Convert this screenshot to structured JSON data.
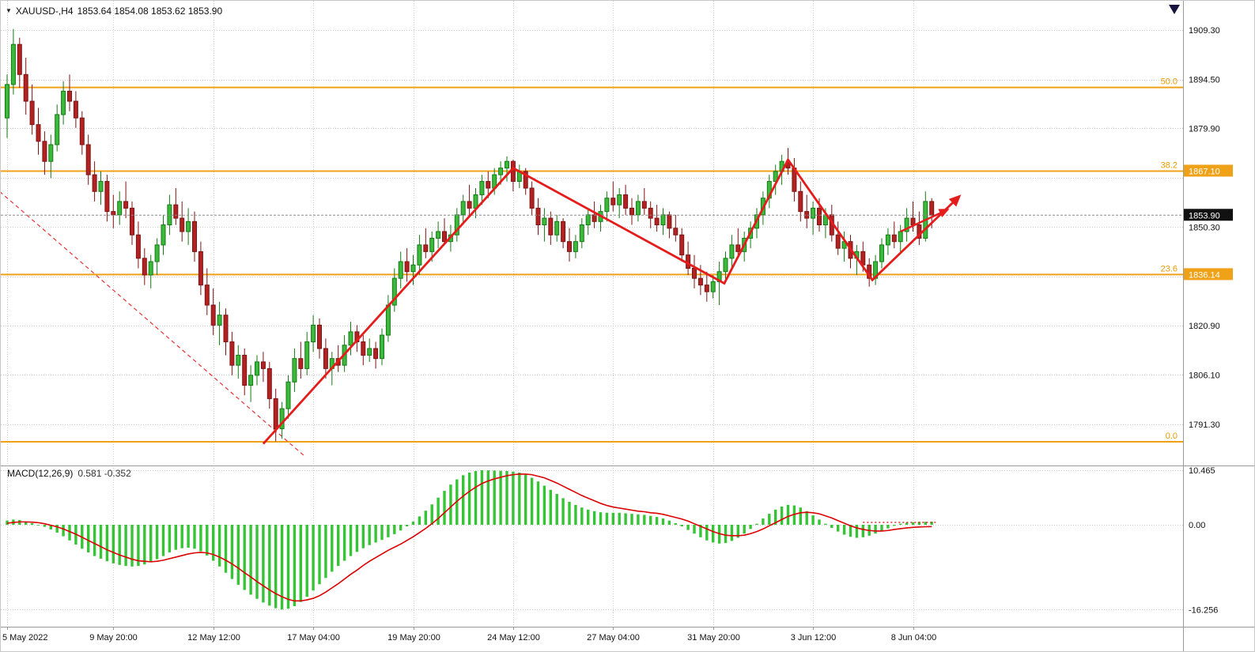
{
  "header": {
    "collapse_icon": "▼",
    "symbol_timeframe": "XAUUSD-,H4",
    "ohlc_text": "1853.64 1854.08 1853.62 1853.90"
  },
  "chart_data": {
    "type": "candlestick",
    "symbol": "XAUUSD-",
    "timeframe": "H4",
    "current_bar_ohlc": {
      "open": 1853.64,
      "high": 1854.08,
      "low": 1853.62,
      "close": 1853.9
    },
    "price_axis": {
      "ticks": [
        {
          "text": "1909.30",
          "price": 1909.3
        },
        {
          "text": "1894.50",
          "price": 1894.5
        },
        {
          "text": "1879.90",
          "price": 1879.9
        },
        {
          "text": "1850.30",
          "price": 1850.3
        },
        {
          "text": "1820.90",
          "price": 1820.9
        },
        {
          "text": "1806.10",
          "price": 1806.1
        },
        {
          "text": "1791.30",
          "price": 1791.3
        }
      ],
      "grid_prices": [
        1909.3,
        1894.5,
        1879.9,
        1865.1,
        1850.3,
        1835.5,
        1820.9,
        1806.1,
        1791.3
      ]
    },
    "time_axis": {
      "labels": [
        {
          "bar": 0,
          "text": "5 May 2022"
        },
        {
          "bar": 17,
          "text": "9 May 20:00"
        },
        {
          "bar": 33,
          "text": "12 May 12:00"
        },
        {
          "bar": 49,
          "text": "17 May 04:00"
        },
        {
          "bar": 65,
          "text": "19 May 20:00"
        },
        {
          "bar": 81,
          "text": "24 May 12:00"
        },
        {
          "bar": 97,
          "text": "27 May 04:00"
        },
        {
          "bar": 113,
          "text": "31 May 20:00"
        },
        {
          "bar": 129,
          "text": "3 Jun 12:00"
        },
        {
          "bar": 145,
          "text": "8 Jun 04:00"
        }
      ]
    },
    "candles": [
      [
        1883,
        1896,
        1877,
        1893
      ],
      [
        1893,
        1909.6,
        1890,
        1905
      ],
      [
        1905,
        1907,
        1892,
        1896
      ],
      [
        1896,
        1901,
        1884,
        1888
      ],
      [
        1888,
        1893,
        1878,
        1881
      ],
      [
        1881,
        1886,
        1872,
        1876
      ],
      [
        1876,
        1879,
        1866,
        1870
      ],
      [
        1870,
        1878,
        1865,
        1875
      ],
      [
        1875,
        1887,
        1873,
        1884
      ],
      [
        1884,
        1894,
        1881,
        1891
      ],
      [
        1891,
        1896,
        1885,
        1888
      ],
      [
        1888,
        1891,
        1880,
        1883
      ],
      [
        1883,
        1885,
        1872,
        1875
      ],
      [
        1875,
        1878,
        1863,
        1866
      ],
      [
        1866,
        1870,
        1858,
        1861
      ],
      [
        1861,
        1867,
        1857,
        1864
      ],
      [
        1864,
        1866,
        1852,
        1855
      ],
      [
        1855,
        1860,
        1850,
        1854
      ],
      [
        1854,
        1861,
        1851,
        1858
      ],
      [
        1858,
        1864,
        1853,
        1856
      ],
      [
        1856,
        1858,
        1845,
        1848
      ],
      [
        1848,
        1852,
        1838,
        1841
      ],
      [
        1841,
        1844,
        1833,
        1836
      ],
      [
        1836,
        1842,
        1832,
        1840
      ],
      [
        1840,
        1847,
        1836,
        1845
      ],
      [
        1845,
        1854,
        1842,
        1851
      ],
      [
        1851,
        1860,
        1848,
        1857
      ],
      [
        1857,
        1862,
        1851,
        1853
      ],
      [
        1853,
        1858,
        1846,
        1849
      ],
      [
        1849,
        1856,
        1845,
        1852
      ],
      [
        1852,
        1855,
        1840,
        1843
      ],
      [
        1843,
        1846,
        1830,
        1833
      ],
      [
        1833,
        1838,
        1824,
        1827
      ],
      [
        1827,
        1832,
        1818,
        1821
      ],
      [
        1821,
        1828,
        1815,
        1824
      ],
      [
        1824,
        1826,
        1812,
        1816
      ],
      [
        1816,
        1819,
        1806,
        1809
      ],
      [
        1809,
        1815,
        1805,
        1812
      ],
      [
        1812,
        1814,
        1800,
        1803
      ],
      [
        1803,
        1809,
        1798,
        1806
      ],
      [
        1806,
        1812,
        1803,
        1810
      ],
      [
        1810,
        1813,
        1804,
        1808
      ],
      [
        1808,
        1810,
        1796,
        1799
      ],
      [
        1799,
        1802,
        1786.2,
        1790
      ],
      [
        1790,
        1798,
        1787,
        1796
      ],
      [
        1796,
        1806,
        1793,
        1804
      ],
      [
        1804,
        1814,
        1801,
        1811
      ],
      [
        1811,
        1816,
        1805,
        1808
      ],
      [
        1808,
        1819,
        1806,
        1816
      ],
      [
        1816,
        1824,
        1813,
        1821
      ],
      [
        1821,
        1823,
        1811,
        1814
      ],
      [
        1814,
        1817,
        1805,
        1808
      ],
      [
        1808,
        1813,
        1803,
        1811
      ],
      [
        1811,
        1815,
        1807,
        1809
      ],
      [
        1809,
        1818,
        1807,
        1815
      ],
      [
        1815,
        1822,
        1812,
        1819
      ],
      [
        1819,
        1821,
        1813,
        1816
      ],
      [
        1816,
        1818,
        1809,
        1812
      ],
      [
        1812,
        1817,
        1810,
        1814
      ],
      [
        1814,
        1816,
        1808,
        1811
      ],
      [
        1811,
        1820,
        1809,
        1818
      ],
      [
        1818,
        1830,
        1816,
        1827
      ],
      [
        1827,
        1838,
        1825,
        1835
      ],
      [
        1835,
        1843,
        1832,
        1840
      ],
      [
        1840,
        1844,
        1834,
        1837
      ],
      [
        1837,
        1842,
        1833,
        1839
      ],
      [
        1839,
        1848,
        1836,
        1845
      ],
      [
        1845,
        1850,
        1841,
        1843
      ],
      [
        1843,
        1849,
        1840,
        1847
      ],
      [
        1847,
        1852,
        1844,
        1849
      ],
      [
        1849,
        1853,
        1845,
        1846
      ],
      [
        1846,
        1851,
        1843,
        1848
      ],
      [
        1848,
        1856,
        1846,
        1854
      ],
      [
        1854,
        1860,
        1851,
        1858
      ],
      [
        1858,
        1863,
        1854,
        1856
      ],
      [
        1856,
        1862,
        1853,
        1860
      ],
      [
        1860,
        1866,
        1857,
        1864
      ],
      [
        1864,
        1867,
        1859,
        1862
      ],
      [
        1862,
        1868,
        1860,
        1866
      ],
      [
        1866,
        1870,
        1863,
        1868
      ],
      [
        1868,
        1871.5,
        1864,
        1870
      ],
      [
        1870,
        1870.5,
        1861,
        1864
      ],
      [
        1864,
        1869,
        1862,
        1867
      ],
      [
        1867,
        1868,
        1860,
        1862
      ],
      [
        1862,
        1864,
        1854,
        1856
      ],
      [
        1856,
        1859,
        1848,
        1851
      ],
      [
        1851,
        1856,
        1846,
        1853
      ],
      [
        1853,
        1855,
        1845,
        1848
      ],
      [
        1848,
        1854,
        1846,
        1852
      ],
      [
        1852,
        1853,
        1844,
        1846
      ],
      [
        1846,
        1850,
        1840,
        1843
      ],
      [
        1843,
        1848,
        1841,
        1846
      ],
      [
        1846,
        1853,
        1844,
        1851
      ],
      [
        1851,
        1856,
        1848,
        1854
      ],
      [
        1854,
        1858,
        1850,
        1852
      ],
      [
        1852,
        1857,
        1849,
        1855
      ],
      [
        1855,
        1861,
        1852,
        1859
      ],
      [
        1859,
        1864,
        1855,
        1857
      ],
      [
        1857,
        1862,
        1853,
        1860
      ],
      [
        1860,
        1863,
        1854,
        1856
      ],
      [
        1856,
        1859,
        1851,
        1854
      ],
      [
        1854,
        1860,
        1852,
        1858
      ],
      [
        1858,
        1862,
        1854,
        1856
      ],
      [
        1856,
        1858,
        1850,
        1853
      ],
      [
        1853,
        1857,
        1849,
        1851
      ],
      [
        1851,
        1856,
        1848,
        1854
      ],
      [
        1854,
        1855,
        1847,
        1850
      ],
      [
        1850,
        1854,
        1846,
        1848
      ],
      [
        1848,
        1850,
        1840,
        1842
      ],
      [
        1842,
        1846,
        1836,
        1838
      ],
      [
        1838,
        1842,
        1832,
        1835
      ],
      [
        1835,
        1839,
        1830,
        1833
      ],
      [
        1833,
        1837,
        1828,
        1831
      ],
      [
        1831,
        1836,
        1829,
        1834
      ],
      [
        1834,
        1840,
        1827,
        1837
      ],
      [
        1837,
        1843,
        1834,
        1841
      ],
      [
        1841,
        1848,
        1838,
        1845
      ],
      [
        1845,
        1850,
        1842,
        1843
      ],
      [
        1843,
        1849,
        1840,
        1847
      ],
      [
        1847,
        1852,
        1844,
        1850
      ],
      [
        1850,
        1856,
        1847,
        1854
      ],
      [
        1854,
        1861,
        1851,
        1859
      ],
      [
        1859,
        1866,
        1856,
        1864
      ],
      [
        1864,
        1869,
        1860,
        1867
      ],
      [
        1867,
        1872,
        1863,
        1870
      ],
      [
        1870,
        1874,
        1866,
        1868
      ],
      [
        1868,
        1871,
        1858,
        1861
      ],
      [
        1861,
        1864,
        1852,
        1855
      ],
      [
        1855,
        1860,
        1850,
        1853
      ],
      [
        1853,
        1858,
        1848,
        1856
      ],
      [
        1856,
        1859,
        1849,
        1851
      ],
      [
        1851,
        1856,
        1847,
        1854
      ],
      [
        1854,
        1857,
        1846,
        1848
      ],
      [
        1848,
        1852,
        1842,
        1844
      ],
      [
        1844,
        1849,
        1840,
        1846
      ],
      [
        1846,
        1848,
        1838,
        1841
      ],
      [
        1841,
        1845,
        1836,
        1843
      ],
      [
        1843,
        1846,
        1837,
        1839
      ],
      [
        1839,
        1841,
        1832.5,
        1835
      ],
      [
        1835,
        1842,
        1833,
        1840
      ],
      [
        1840,
        1847,
        1838,
        1845
      ],
      [
        1845,
        1850,
        1842,
        1848
      ],
      [
        1848,
        1852,
        1844,
        1846
      ],
      [
        1846,
        1851,
        1843,
        1849
      ],
      [
        1849,
        1856,
        1846,
        1853
      ],
      [
        1853,
        1858,
        1849,
        1851
      ],
      [
        1851,
        1855,
        1845,
        1847
      ],
      [
        1847,
        1861,
        1846,
        1858
      ],
      [
        1858,
        1859,
        1850,
        1853.9
      ]
    ],
    "overlays": {
      "fib_levels": [
        {
          "label": "50.0",
          "price": 1892.13,
          "badge": ""
        },
        {
          "label": "38.2",
          "price": 1867.1,
          "badge": "1867.10"
        },
        {
          "label": "23.6",
          "price": 1836.14,
          "badge": "1836.14"
        },
        {
          "label": "0.0",
          "price": 1786.1,
          "badge": ""
        }
      ],
      "current_price": {
        "value": 1853.9,
        "badge": "1853.90"
      },
      "trendline": {
        "style": "dashed",
        "points": [
          {
            "bar": -1.2,
            "price": 1861
          },
          {
            "bar": 47.5,
            "price": 1782
          }
        ]
      },
      "zigzag_arrow": {
        "points": [
          {
            "bar": 41,
            "price": 1785.5
          },
          {
            "bar": 81,
            "price": 1868
          },
          {
            "bar": 114.8,
            "price": 1833.5
          },
          {
            "bar": 125,
            "price": 1870.5
          },
          {
            "bar": 138.5,
            "price": 1834.5
          },
          {
            "bar": 152.4,
            "price": 1859.5
          }
        ]
      },
      "arrow2": {
        "points": [
          {
            "bar": 143,
            "price": 1849
          },
          {
            "bar": 150.5,
            "price": 1855.5
          }
        ]
      }
    },
    "macd": {
      "label": "MACD(12,26,9)",
      "values_text": "0.581 -0.352",
      "main_value": 0.581,
      "signal_value": -0.352,
      "axis": [
        {
          "text": "10.465",
          "value": 10.465
        },
        {
          "text": "0.00",
          "value": 0
        },
        {
          "text": "-16.256",
          "value": -16.256
        }
      ],
      "histogram": [
        0.8,
        1.0,
        0.9,
        0.6,
        0.3,
        0.0,
        -0.4,
        -0.9,
        -1.5,
        -2.2,
        -3.0,
        -3.8,
        -4.6,
        -5.3,
        -6.0,
        -6.5,
        -7.0,
        -7.4,
        -7.7,
        -7.9,
        -8.0,
        -7.9,
        -7.6,
        -7.2,
        -6.6,
        -6.0,
        -5.3,
        -4.8,
        -4.5,
        -4.4,
        -4.6,
        -5.1,
        -5.9,
        -6.9,
        -8.0,
        -9.2,
        -10.4,
        -11.5,
        -12.5,
        -13.4,
        -14.2,
        -14.9,
        -15.5,
        -16.0,
        -16.256,
        -16.1,
        -15.6,
        -14.8,
        -13.8,
        -12.6,
        -11.4,
        -10.2,
        -9.0,
        -7.9,
        -6.9,
        -6.0,
        -5.2,
        -4.5,
        -3.9,
        -3.4,
        -2.9,
        -2.4,
        -1.8,
        -1.1,
        -0.3,
        0.6,
        1.6,
        2.7,
        3.9,
        5.2,
        6.5,
        7.7,
        8.7,
        9.5,
        10.0,
        10.3,
        10.465,
        10.44,
        10.4,
        10.35,
        10.3,
        10.2,
        10.0,
        9.6,
        9.0,
        8.3,
        7.5,
        6.7,
        5.9,
        5.1,
        4.4,
        3.8,
        3.3,
        2.9,
        2.6,
        2.4,
        2.3,
        2.3,
        2.3,
        2.2,
        2.1,
        2.0,
        1.9,
        1.7,
        1.5,
        1.2,
        0.8,
        0.3,
        -0.3,
        -1.0,
        -1.7,
        -2.4,
        -3.0,
        -3.4,
        -3.6,
        -3.5,
        -3.1,
        -2.5,
        -1.7,
        -0.8,
        0.2,
        1.2,
        2.1,
        2.9,
        3.5,
        3.8,
        3.7,
        3.3,
        2.6,
        1.8,
        1.0,
        0.2,
        -0.6,
        -1.3,
        -1.9,
        -2.3,
        -2.5,
        -2.4,
        -2.1,
        -1.7,
        -1.2,
        -0.7,
        -0.2,
        0.2,
        0.4,
        0.5,
        0.55,
        0.57,
        0.581
      ],
      "signal": [
        0.3,
        0.45,
        0.55,
        0.55,
        0.5,
        0.4,
        0.2,
        -0.1,
        -0.4,
        -0.8,
        -1.3,
        -1.8,
        -2.4,
        -3.0,
        -3.6,
        -4.2,
        -4.8,
        -5.3,
        -5.8,
        -6.2,
        -6.6,
        -6.9,
        -7.0,
        -7.1,
        -7.0,
        -6.8,
        -6.5,
        -6.2,
        -5.9,
        -5.6,
        -5.4,
        -5.3,
        -5.4,
        -5.7,
        -6.2,
        -6.8,
        -7.5,
        -8.3,
        -9.2,
        -10.0,
        -10.9,
        -11.7,
        -12.5,
        -13.2,
        -13.8,
        -14.3,
        -14.6,
        -14.6,
        -14.4,
        -14.1,
        -13.6,
        -12.9,
        -12.1,
        -11.3,
        -10.4,
        -9.5,
        -8.7,
        -7.8,
        -7.0,
        -6.3,
        -5.6,
        -4.9,
        -4.3,
        -3.7,
        -3.0,
        -2.3,
        -1.5,
        -0.7,
        0.2,
        1.2,
        2.3,
        3.4,
        4.5,
        5.5,
        6.4,
        7.2,
        7.9,
        8.4,
        8.8,
        9.1,
        9.4,
        9.6,
        9.7,
        9.7,
        9.6,
        9.3,
        9.0,
        8.5,
        8.0,
        7.4,
        6.8,
        6.2,
        5.6,
        5.1,
        4.6,
        4.1,
        3.7,
        3.4,
        3.2,
        3.0,
        2.8,
        2.6,
        2.5,
        2.3,
        2.2,
        2.0,
        1.7,
        1.4,
        1.1,
        0.7,
        0.2,
        -0.3,
        -0.8,
        -1.3,
        -1.7,
        -2.0,
        -2.1,
        -2.1,
        -2.0,
        -1.7,
        -1.3,
        -0.8,
        -0.2,
        0.4,
        1.0,
        1.6,
        2.0,
        2.3,
        2.4,
        2.3,
        2.1,
        1.7,
        1.3,
        0.8,
        0.3,
        -0.2,
        -0.6,
        -0.9,
        -1.1,
        -1.2,
        -1.2,
        -1.1,
        -0.9,
        -0.75,
        -0.6,
        -0.5,
        -0.43,
        -0.38,
        -0.352
      ],
      "dotted_tail": {
        "from_bar": 137,
        "to_bar": 149,
        "value": 0.45
      }
    }
  },
  "colors": {
    "background": "#ffffff",
    "grid": "#c9c9c9",
    "bull": "#3cb93c",
    "bull_dark": "#157a15",
    "bear": "#b22222",
    "bear_dark": "#7d1414",
    "fib": "#efa118",
    "fib_text": "#e89a00",
    "arrow": "#e51c1c",
    "signal": "#dd0000",
    "hist": "#36c436",
    "badge_text": "#ffffff",
    "current_badge_bg": "#111111",
    "axis_text": "#111111",
    "separator": "#9a9a9a"
  }
}
